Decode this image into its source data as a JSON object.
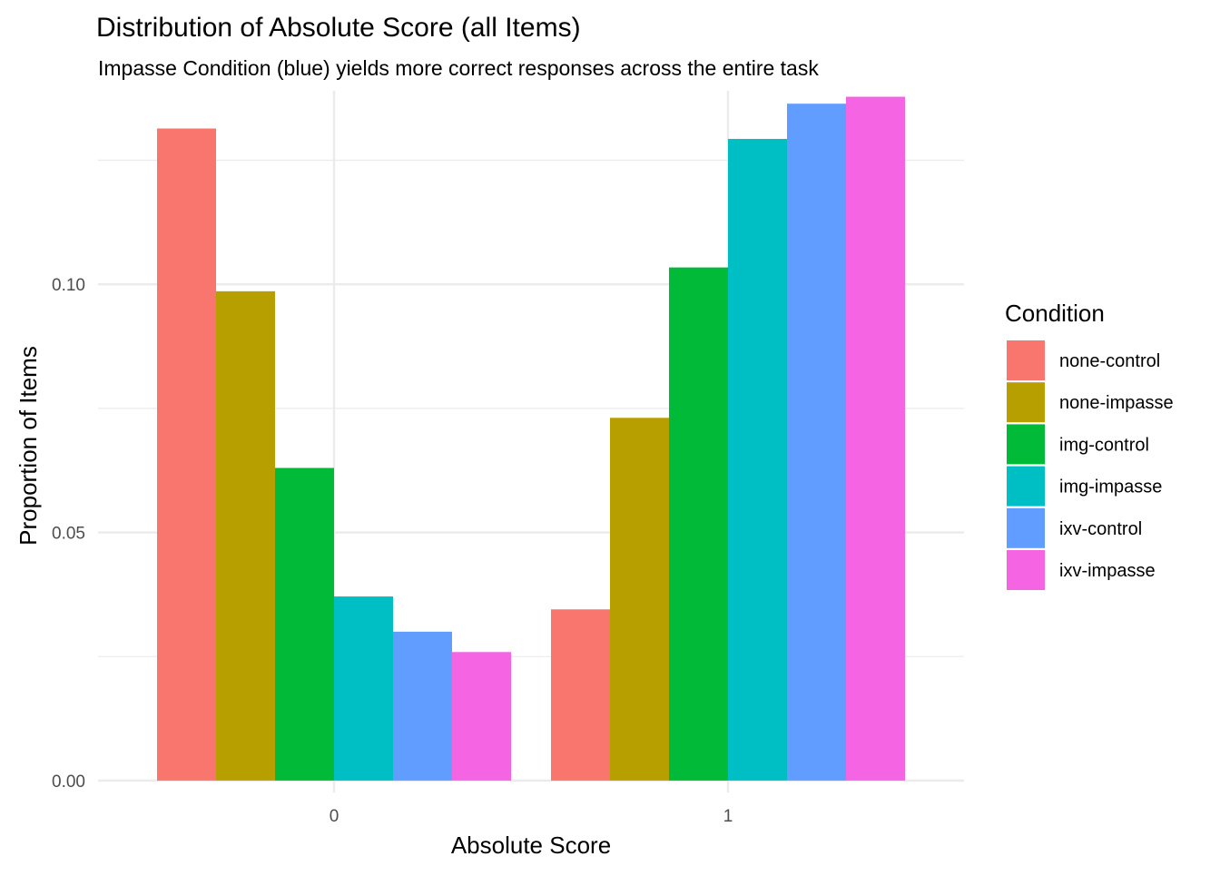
{
  "chart_data": {
    "type": "bar",
    "title": "Distribution of Absolute Score (all Items)",
    "subtitle": "Impasse Condition (blue) yields more correct responses across the entire task",
    "xlabel": "Absolute Score",
    "ylabel": "Proportion of Items",
    "categories": [
      "0",
      "1"
    ],
    "y_ticks": [
      "0.00",
      "0.05",
      "0.10"
    ],
    "y_tick_values": [
      0,
      0.05,
      0.1
    ],
    "ylim": [
      -0.0024,
      0.139
    ],
    "grid": true,
    "legend": {
      "title": "Condition",
      "position": "right"
    },
    "series": [
      {
        "name": "none-control",
        "color": "#F8766D",
        "values": [
          0.1314,
          0.0345
        ]
      },
      {
        "name": "none-impasse",
        "color": "#B79F00",
        "values": [
          0.0986,
          0.0731
        ]
      },
      {
        "name": "img-control",
        "color": "#00BA38",
        "values": [
          0.063,
          0.1034
        ]
      },
      {
        "name": "img-impasse",
        "color": "#00BFC4",
        "values": [
          0.0371,
          0.1293
        ]
      },
      {
        "name": "ixv-control",
        "color": "#619CFF",
        "values": [
          0.03,
          0.1364
        ]
      },
      {
        "name": "ixv-impasse",
        "color": "#F564E3",
        "values": [
          0.0259,
          0.1378
        ]
      }
    ]
  }
}
